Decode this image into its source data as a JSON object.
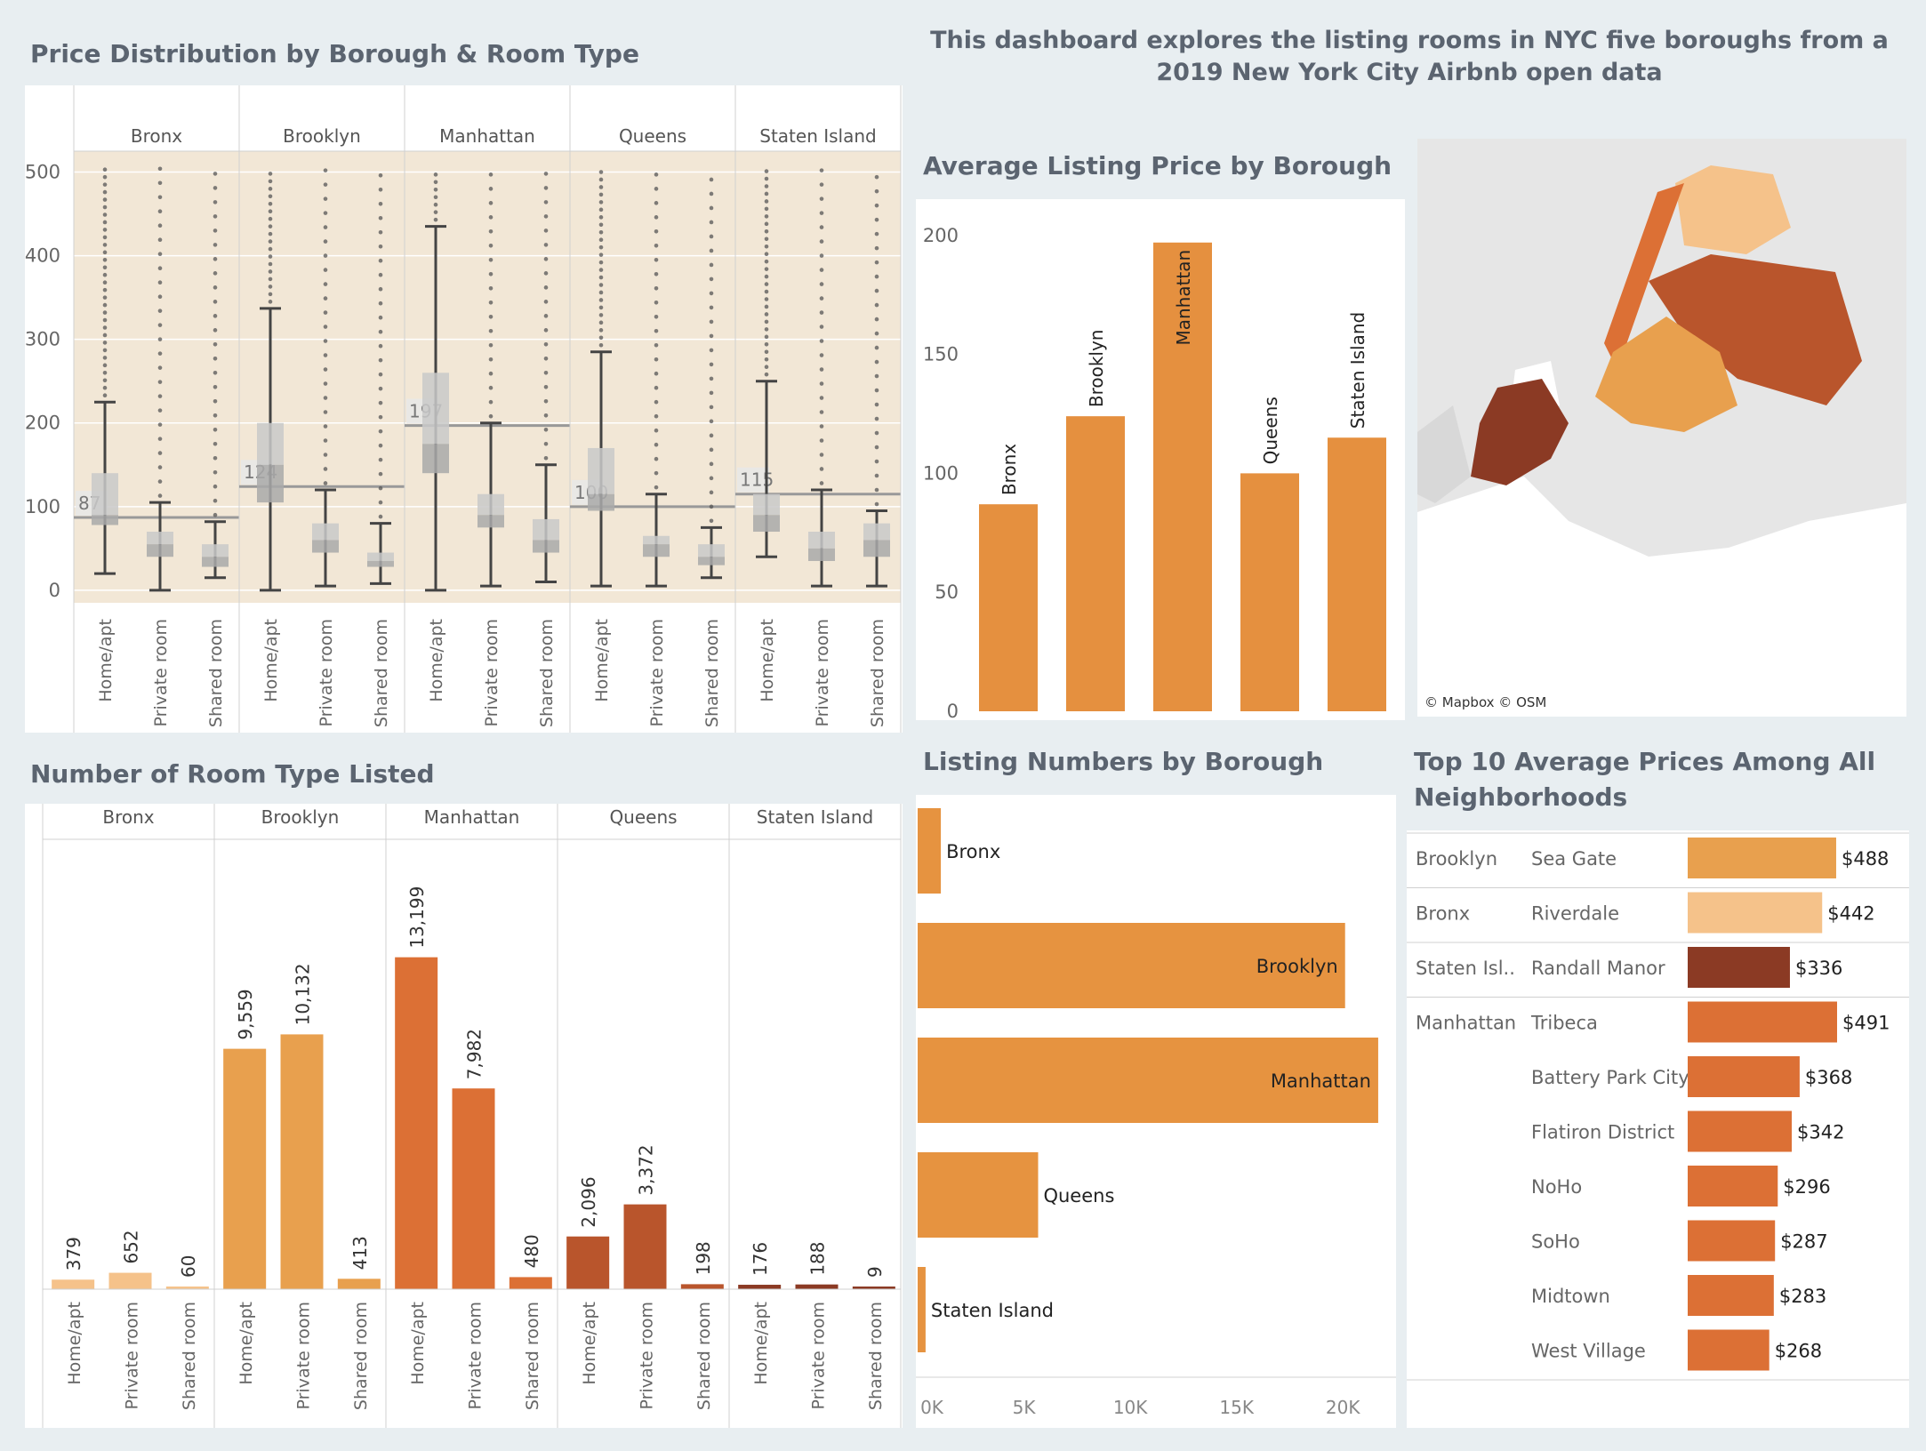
{
  "dashboard_title": "This dashboard explores the listing rooms in NYC five boroughs from a 2019 New York City Airbnb open data",
  "colors": {
    "bronx": "#f5c28a",
    "brooklyn": "#e8a04e",
    "manhattan": "#dc7035",
    "queens": "#b9552c",
    "staten_island": "#8b3a24",
    "avg_bar": "#e5903f",
    "listing_bar": "#e69340",
    "panel_bg": "#f2e7d6"
  },
  "titles": {
    "price_dist": "Price Distribution by Borough & Room Type",
    "room_type": "Number of Room Type Listed",
    "avg_price": "Average Listing Price by Borough",
    "listing_numbers": "Listing Numbers by Borough",
    "top10_line1": "Top 10 Average Prices Among All",
    "top10_line2": "Neighborhoods"
  },
  "map": {
    "credit": "© Mapbox  © OSM"
  },
  "chart_data": [
    {
      "id": "price_distribution",
      "type": "boxplot",
      "title": "Price Distribution by Borough & Room Type",
      "boroughs": [
        "Bronx",
        "Brooklyn",
        "Manhattan",
        "Queens",
        "Staten Island"
      ],
      "room_types": [
        "Home/apt",
        "Private room",
        "Shared room"
      ],
      "y_ticks": [
        0,
        100,
        200,
        300,
        400,
        500
      ],
      "ylim": [
        -15,
        525
      ],
      "borough_avg": [
        87,
        124,
        197,
        100,
        115
      ],
      "boxes": [
        [
          [
            20,
            78,
            90,
            140,
            225
          ],
          [
            0,
            40,
            55,
            70,
            105
          ],
          [
            15,
            28,
            40,
            55,
            82
          ]
        ],
        [
          [
            0,
            105,
            150,
            200,
            337
          ],
          [
            5,
            45,
            60,
            80,
            120
          ],
          [
            8,
            28,
            35,
            45,
            80
          ]
        ],
        [
          [
            0,
            140,
            175,
            260,
            435
          ],
          [
            5,
            75,
            90,
            115,
            200
          ],
          [
            10,
            45,
            60,
            85,
            150
          ]
        ],
        [
          [
            5,
            95,
            115,
            170,
            285
          ],
          [
            5,
            40,
            55,
            65,
            115
          ],
          [
            15,
            30,
            40,
            55,
            75
          ]
        ],
        [
          [
            40,
            70,
            90,
            115,
            250
          ],
          [
            5,
            35,
            50,
            70,
            120
          ],
          [
            5,
            40,
            60,
            80,
            95
          ]
        ]
      ]
    },
    {
      "id": "room_type_counts",
      "type": "bar",
      "title": "Number of Room Type Listed",
      "boroughs": [
        "Bronx",
        "Brooklyn",
        "Manhattan",
        "Queens",
        "Staten Island"
      ],
      "categories": [
        "Home/apt",
        "Private room",
        "Shared room"
      ],
      "values": [
        [
          379,
          652,
          60
        ],
        [
          9559,
          10132,
          413
        ],
        [
          13199,
          7982,
          480
        ],
        [
          2096,
          3372,
          198
        ],
        [
          176,
          188,
          9
        ]
      ],
      "labels": [
        [
          "379",
          "652",
          "60"
        ],
        [
          "9,559",
          "10,132",
          "413"
        ],
        [
          "13,199",
          "7,982",
          "480"
        ],
        [
          "2,096",
          "3,372",
          "198"
        ],
        [
          "176",
          "188",
          "9"
        ]
      ]
    },
    {
      "id": "avg_price",
      "type": "bar",
      "title": "Average Listing Price by Borough",
      "categories": [
        "Bronx",
        "Brooklyn",
        "Manhattan",
        "Queens",
        "Staten Island"
      ],
      "values": [
        87,
        124,
        197,
        100,
        115
      ],
      "y_ticks": [
        0,
        50,
        100,
        150,
        200
      ],
      "ylim": [
        0,
        210
      ]
    },
    {
      "id": "listing_numbers",
      "type": "bar",
      "orientation": "horizontal",
      "title": "Listing Numbers by Borough",
      "categories": [
        "Bronx",
        "Brooklyn",
        "Manhattan",
        "Queens",
        "Staten Island"
      ],
      "values": [
        1091,
        20104,
        21661,
        5666,
        373
      ],
      "x_ticks": [
        0,
        5000,
        10000,
        15000,
        20000
      ],
      "x_tick_labels": [
        "0K",
        "5K",
        "10K",
        "15K",
        "20K"
      ],
      "xlim": [
        0,
        22500
      ]
    },
    {
      "id": "top10_neighborhoods",
      "type": "bar",
      "orientation": "horizontal",
      "title": "Top 10 Average Prices Among All Neighborhoods",
      "rows": [
        {
          "borough": "Brooklyn",
          "neighborhood": "Sea Gate",
          "value": 488,
          "label": "$488",
          "color": "#e8a04e"
        },
        {
          "borough": "Bronx",
          "neighborhood": "Riverdale",
          "value": 442,
          "label": "$442",
          "color": "#f5c28a"
        },
        {
          "borough": "Staten Isl..",
          "neighborhood": "Randall Manor",
          "value": 336,
          "label": "$336",
          "color": "#8b3a24"
        },
        {
          "borough": "Manhattan",
          "neighborhood": "Tribeca",
          "value": 491,
          "label": "$491",
          "color": "#dc7035"
        },
        {
          "borough": "",
          "neighborhood": "Battery Park City",
          "value": 368,
          "label": "$368",
          "color": "#dc7035"
        },
        {
          "borough": "",
          "neighborhood": "Flatiron District",
          "value": 342,
          "label": "$342",
          "color": "#dc7035"
        },
        {
          "borough": "",
          "neighborhood": "NoHo",
          "value": 296,
          "label": "$296",
          "color": "#dc7035"
        },
        {
          "borough": "",
          "neighborhood": "SoHo",
          "value": 287,
          "label": "$287",
          "color": "#dc7035"
        },
        {
          "borough": "",
          "neighborhood": "Midtown",
          "value": 283,
          "label": "$283",
          "color": "#dc7035"
        },
        {
          "borough": "",
          "neighborhood": "West Village",
          "value": 268,
          "label": "$268",
          "color": "#dc7035"
        }
      ]
    }
  ]
}
